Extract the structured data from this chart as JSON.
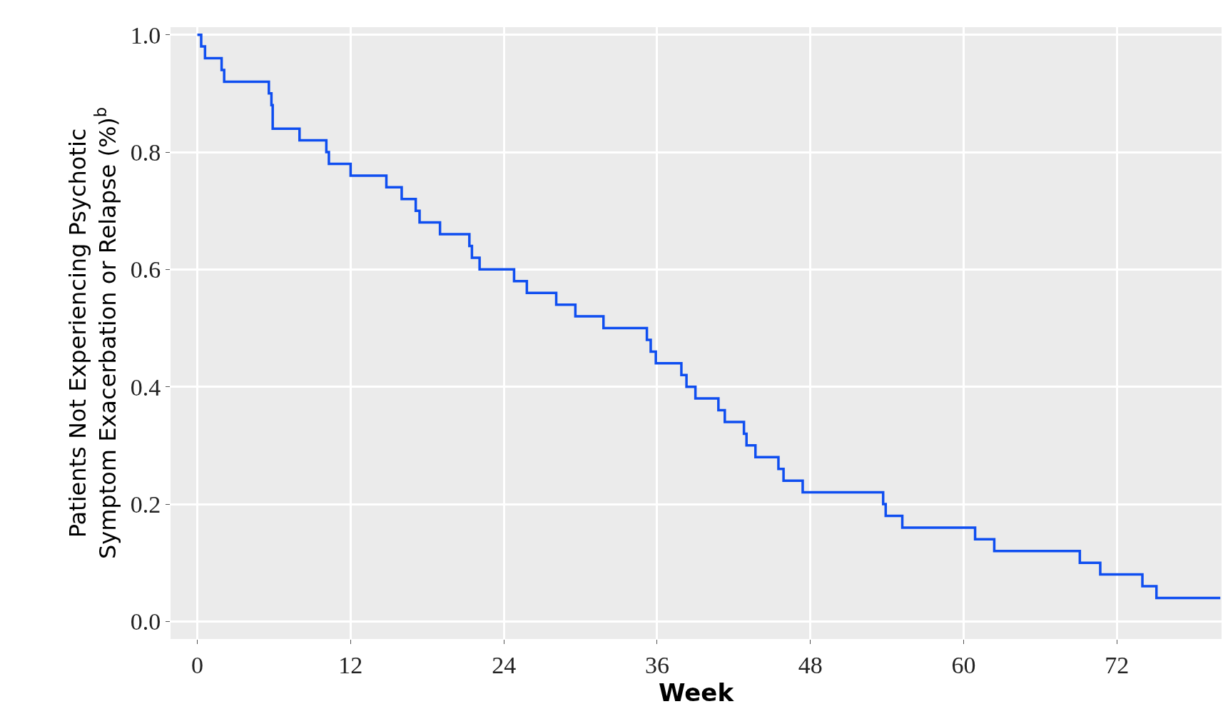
{
  "chart_data": {
    "type": "step",
    "xlabel": "Week",
    "ylabel": "Patients Not Experiencing Psychotic\nSymptom Exacerbation or Relapse (%)$^{b}$",
    "series": [
      {
        "color": "#0f4ef0",
        "x": [
          0,
          0.3,
          0.6,
          1.9,
          2.1,
          5.6,
          5.8,
          5.9,
          8.0,
          10.1,
          10.3,
          12.0,
          14.8,
          16.0,
          17.1,
          17.4,
          19.0,
          21.3,
          21.5,
          22.1,
          24.8,
          25.8,
          28.1,
          29.6,
          31.8,
          35.2,
          35.5,
          35.9,
          37.9,
          38.3,
          39.0,
          40.8,
          41.3,
          42.8,
          43.0,
          43.7,
          45.5,
          45.9,
          47.4,
          53.7,
          53.9,
          55.2,
          60.9,
          62.4,
          69.1,
          70.7,
          74.0,
          75.1,
          80.1
        ],
        "values": [
          1.0,
          0.98,
          0.96,
          0.94,
          0.92,
          0.9,
          0.88,
          0.84,
          0.82,
          0.8,
          0.78,
          0.76,
          0.74,
          0.72,
          0.7,
          0.68,
          0.66,
          0.64,
          0.62,
          0.6,
          0.58,
          0.56,
          0.54,
          0.52,
          0.5,
          0.48,
          0.46,
          0.44,
          0.42,
          0.4,
          0.38,
          0.36,
          0.34,
          0.32,
          0.3,
          0.28,
          0.26,
          0.24,
          0.22,
          0.2,
          0.18,
          0.16,
          0.14,
          0.12,
          0.1,
          0.08,
          0.06,
          0.04,
          0.04
        ]
      }
    ],
    "xlim": [
      -2.1,
      80.2
    ],
    "ylim": [
      -0.03,
      1.013
    ],
    "xticks": [
      0,
      12,
      24,
      36,
      48,
      60,
      72
    ],
    "yticks": [
      {
        "value": 0,
        "label": "0.0"
      },
      0.2,
      0.4,
      0.6,
      0.8,
      {
        "value": 1,
        "label": "1.0"
      }
    ],
    "grid": true,
    "line_style": "solid",
    "marker": "none"
  }
}
